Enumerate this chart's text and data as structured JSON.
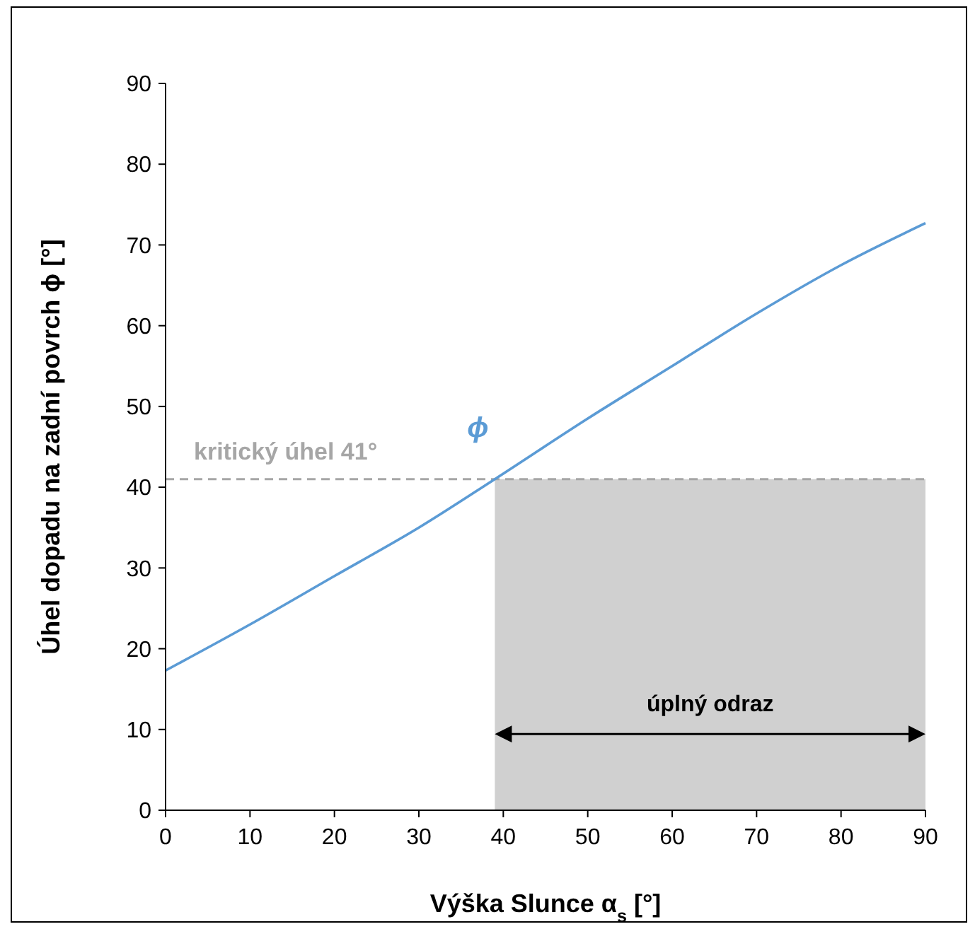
{
  "chart_data": {
    "type": "line",
    "xlabel": "Výška Slunce α$_{s}$ [°]",
    "ylabel": "Úhel dopadu na zadní povrch ϕ [°]",
    "x": [
      0,
      10,
      20,
      30,
      39,
      50,
      60,
      70,
      80,
      90
    ],
    "series": [
      {
        "name": "ϕ",
        "color": "#5b9bd5",
        "values": [
          17.3,
          23,
          29,
          35,
          41,
          48.5,
          55,
          61.5,
          67.5,
          72.7
        ]
      }
    ],
    "xlim": [
      0,
      90
    ],
    "xticks": [
      0,
      10,
      20,
      30,
      40,
      50,
      60,
      70,
      80,
      90
    ],
    "ylim": [
      0,
      90
    ],
    "yticks": [
      0,
      10,
      20,
      30,
      40,
      50,
      60,
      70,
      80,
      90
    ],
    "ref_lines": [
      {
        "axis": "y",
        "value": 41,
        "label": "kritický úhel 41°",
        "color": "#a6a6a6",
        "line_style": "dashed"
      }
    ],
    "bands": [
      {
        "axis": "x",
        "from": 39,
        "to": 90,
        "label": "úplný odraz",
        "color": "#d0d0d0"
      }
    ],
    "grid": false,
    "legend": false,
    "marker": "none",
    "line_style": "solid"
  }
}
